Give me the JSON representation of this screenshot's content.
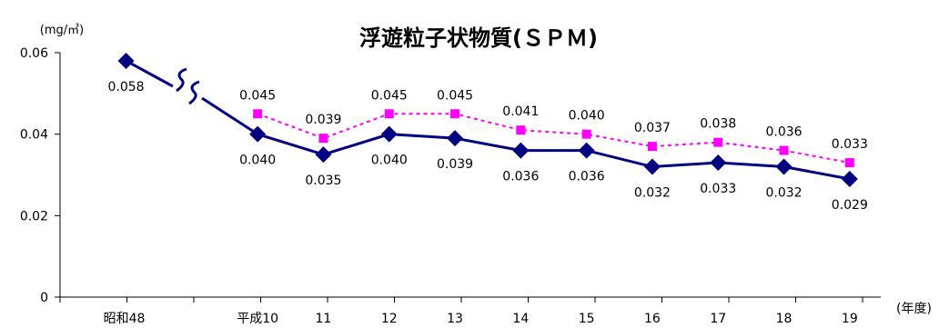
{
  "chart_data": {
    "type": "line",
    "title": "浮遊粒子状物質(ＳＰＭ)",
    "ylabel": "(mg/㎥)",
    "xlabel": "(年度)",
    "ylim": [
      0,
      0.06
    ],
    "yticks": [
      "0",
      "0.02",
      "0.04",
      "0.06"
    ],
    "categories": [
      "昭和48",
      "",
      "平成10",
      "11",
      "12",
      "13",
      "14",
      "15",
      "16",
      "17",
      "18",
      "19"
    ],
    "axis_break": true,
    "grid": false,
    "series": [
      {
        "name": "",
        "color": "#000080",
        "marker": "diamond",
        "line": "solid",
        "values": [
          0.058,
          null,
          0.04,
          0.035,
          0.04,
          0.039,
          0.036,
          0.036,
          0.032,
          0.033,
          0.032,
          0.029
        ],
        "labels": [
          "0.058",
          "",
          "0.040",
          "0.035",
          "0.040",
          "0.039",
          "0.036",
          "0.036",
          "0.032",
          "0.033",
          "0.032",
          "0.029"
        ]
      },
      {
        "name": "",
        "color": "#ff00ff",
        "marker": "square",
        "line": "dashed",
        "values": [
          null,
          null,
          0.045,
          0.039,
          0.045,
          0.045,
          0.041,
          0.04,
          0.037,
          0.038,
          0.036,
          0.033
        ],
        "labels": [
          "",
          "",
          "0.045",
          "0.039",
          "0.045",
          "0.045",
          "0.041",
          "0.040",
          "0.037",
          "0.038",
          "0.036",
          "0.033"
        ]
      }
    ]
  }
}
